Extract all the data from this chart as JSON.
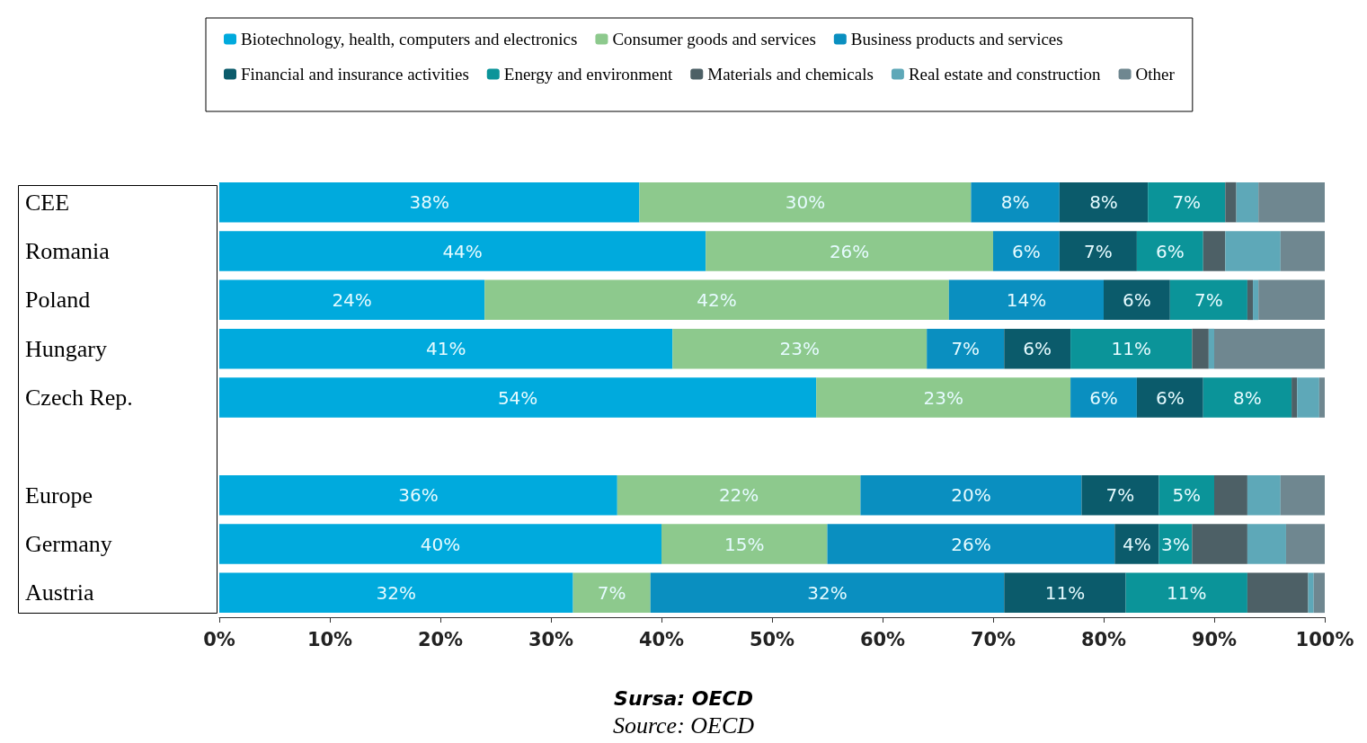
{
  "chart_data": {
    "type": "bar",
    "orientation": "horizontal",
    "stacked": true,
    "legend": "top",
    "grid": false,
    "categories": [
      "CEE",
      "Romania",
      "Poland",
      "Hungary",
      "Czech Rep.",
      null,
      "Europe",
      "Germany",
      "Austria"
    ],
    "xlim": [
      0,
      100
    ],
    "xticks": [
      {
        "value": 0,
        "label": "0%"
      },
      {
        "value": 10,
        "label": "10%"
      },
      {
        "value": 20,
        "label": "20%"
      },
      {
        "value": 30,
        "label": "30%"
      },
      {
        "value": 40,
        "label": "40%"
      },
      {
        "value": 50,
        "label": "50%"
      },
      {
        "value": 60,
        "label": "60%"
      },
      {
        "value": 70,
        "label": "70%"
      },
      {
        "value": 80,
        "label": "80%"
      },
      {
        "value": 90,
        "label": "90%"
      },
      {
        "value": 100,
        "label": "100%"
      }
    ],
    "series": [
      {
        "name": "Biotechnology, health, computers and electronics",
        "color": "#00aadd",
        "values": [
          38,
          44,
          24,
          41,
          54,
          null,
          36,
          40,
          32
        ],
        "value_labels": [
          "38%",
          "44%",
          "24%",
          "41%",
          "54%",
          null,
          "36%",
          "40%",
          "32%"
        ]
      },
      {
        "name": "Consumer goods and services",
        "color": "#8dc98d",
        "values": [
          30,
          26,
          42,
          23,
          23,
          null,
          22,
          15,
          7
        ],
        "value_labels": [
          "30%",
          "26%",
          "42%",
          "23%",
          "23%",
          null,
          "22%",
          "15%",
          "7%"
        ]
      },
      {
        "name": "Business products and services",
        "color": "#0a8fc0",
        "values": [
          8,
          6,
          14,
          7,
          6,
          null,
          20,
          26,
          32
        ],
        "value_labels": [
          "8%",
          "6%",
          "14%",
          "7%",
          "6%",
          null,
          "20%",
          "26%",
          "32%"
        ]
      },
      {
        "name": "Financial and insurance activities",
        "color": "#0b5b6b",
        "values": [
          8,
          7,
          6,
          6,
          6,
          null,
          7,
          4,
          11
        ],
        "value_labels": [
          "8%",
          "7%",
          "6%",
          "6%",
          "6%",
          null,
          "7%",
          "4%",
          "11%"
        ]
      },
      {
        "name": "Energy and environment",
        "color": "#0b9499",
        "values": [
          7,
          6,
          7,
          11,
          8,
          null,
          5,
          3,
          11
        ],
        "value_labels": [
          "7%",
          "6%",
          "7%",
          "11%",
          "8%",
          null,
          "5%",
          "3%",
          "11%"
        ]
      },
      {
        "name": "Materials and chemicals",
        "color": "#4d6066",
        "values": [
          1,
          2,
          0.5,
          1.5,
          0.5,
          null,
          3,
          5,
          5.5
        ]
      },
      {
        "name": "Real estate and construction",
        "color": "#5ea8b8",
        "values": [
          2,
          5,
          0.5,
          0.5,
          2,
          null,
          3,
          3.5,
          0.5
        ]
      },
      {
        "name": "Other",
        "color": "#6f8790",
        "values": [
          6,
          4,
          6,
          10,
          0.5,
          null,
          4,
          3.5,
          1
        ]
      }
    ],
    "annotations": [
      "Sursa: OECD",
      "Source: OECD"
    ]
  }
}
